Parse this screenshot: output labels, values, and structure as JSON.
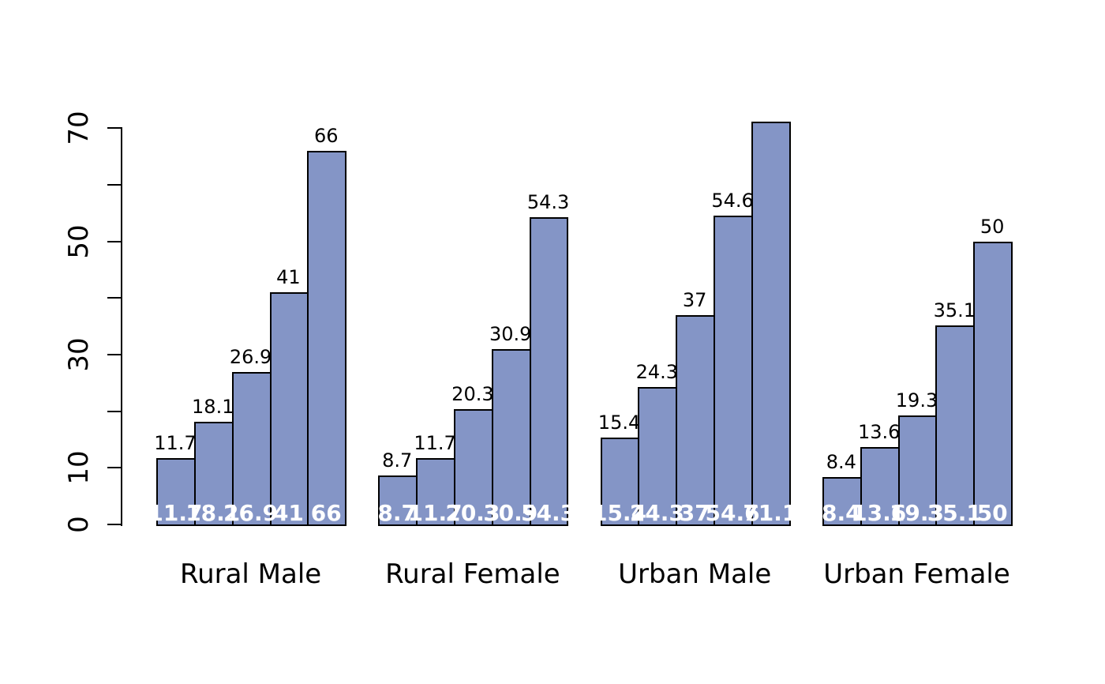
{
  "chart_data": {
    "type": "bar",
    "title": "",
    "xlabel": "",
    "ylabel": "",
    "categories": [
      "Rural Male",
      "Rural Female",
      "Urban Male",
      "Urban Female"
    ],
    "groups": [
      {
        "category": "Rural Male",
        "values": [
          11.7,
          18.1,
          26.9,
          41,
          66
        ],
        "top_labels": [
          "11.7",
          "18.1",
          "26.9",
          "41",
          "66"
        ],
        "inner_labels": [
          "11.7",
          "18.1",
          "26.9",
          "41",
          "66"
        ]
      },
      {
        "category": "Rural Female",
        "values": [
          8.7,
          11.7,
          20.3,
          30.9,
          54.3
        ],
        "top_labels": [
          "8.7",
          "11.7",
          "20.3",
          "30.9",
          "54.3"
        ],
        "inner_labels": [
          "8.7",
          "11.7",
          "20.3",
          "30.9",
          "54.3"
        ]
      },
      {
        "category": "Urban Male",
        "values": [
          15.4,
          24.3,
          37,
          54.6,
          71.1
        ],
        "top_labels": [
          "15.4",
          "24.3",
          "37",
          "54.6",
          ""
        ],
        "inner_labels": [
          "15.4",
          "24.3",
          "37",
          "54.6",
          "71.1"
        ]
      },
      {
        "category": "Urban Female",
        "values": [
          8.4,
          13.6,
          19.3,
          35.1,
          50
        ],
        "top_labels": [
          "8.4",
          "13.6",
          "19.3",
          "35.1",
          "50"
        ],
        "inner_labels": [
          "8.4",
          "13.6",
          "19.3",
          "35.1",
          "50"
        ]
      }
    ],
    "y_axis": {
      "range": [
        0,
        70
      ],
      "tick_values": [
        0,
        10,
        20,
        30,
        40,
        50,
        60,
        70
      ],
      "labeled_ticks": [
        {
          "value": 0,
          "label": "0"
        },
        {
          "value": 10,
          "label": "10"
        },
        {
          "value": 30,
          "label": "30"
        },
        {
          "value": 50,
          "label": "50"
        },
        {
          "value": 70,
          "label": "70"
        }
      ]
    },
    "legend": null,
    "grid": false,
    "colors": {
      "bar_fill": "#8495C6",
      "bar_border": "#000000",
      "axis": "#000000",
      "top_label_color": "#000000",
      "inner_label_color": "#ffffff",
      "background": "#ffffff"
    }
  }
}
